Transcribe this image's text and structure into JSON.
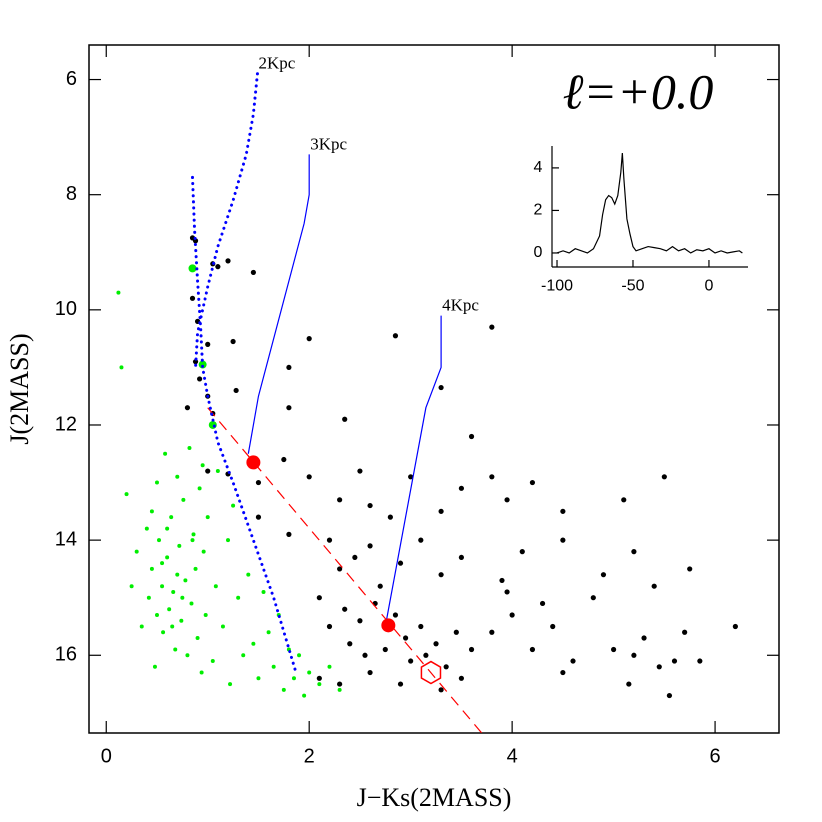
{
  "chart_data": [
    {
      "type": "scatter",
      "title": "ℓ=+0.0",
      "xlabel": "J−Ks(2MASS)",
      "ylabel": "J(2MASS)",
      "xlim": [
        -0.17,
        6.63
      ],
      "ylim": [
        5.4,
        17.35
      ],
      "y_inverted": true,
      "xticks": [
        0,
        2,
        4,
        6
      ],
      "yticks": [
        6,
        8,
        10,
        12,
        14,
        16
      ],
      "series": [
        {
          "mode": "markers",
          "color": "#00ee00",
          "marker_size": 2,
          "x": [
            0.12,
            0.15,
            0.2,
            0.25,
            0.3,
            0.35,
            0.4,
            0.42,
            0.45,
            0.48,
            0.5,
            0.52,
            0.55,
            0.56,
            0.58,
            0.6,
            0.62,
            0.64,
            0.66,
            0.68,
            0.7,
            0.72,
            0.74,
            0.76,
            0.78,
            0.8,
            0.82,
            0.84,
            0.86,
            0.88,
            0.9,
            0.92,
            0.94,
            0.96,
            0.98,
            1.0,
            1.05,
            1.08,
            1.1,
            1.15,
            1.2,
            1.22,
            1.25,
            1.3,
            1.35,
            1.4,
            1.45,
            1.5,
            1.55,
            1.6,
            1.65,
            1.7,
            1.75,
            1.8,
            1.85,
            1.9,
            1.95,
            2.0,
            2.1,
            2.2,
            2.3,
            0.65,
            0.55,
            0.7,
            0.6,
            0.75,
            0.5,
            0.85,
            0.95,
            0.45
          ],
          "values": [
            9.7,
            11.0,
            13.2,
            14.8,
            14.2,
            15.5,
            13.8,
            15.0,
            14.5,
            16.2,
            13.0,
            14.0,
            14.8,
            15.6,
            12.5,
            14.3,
            15.2,
            13.6,
            14.9,
            15.9,
            12.9,
            14.1,
            15.4,
            13.3,
            14.7,
            16.0,
            12.4,
            15.1,
            13.9,
            14.5,
            15.7,
            13.1,
            16.3,
            14.2,
            15.3,
            13.6,
            16.1,
            14.8,
            12.8,
            15.5,
            14.0,
            16.5,
            13.4,
            15.0,
            16.0,
            14.6,
            15.8,
            16.4,
            14.9,
            15.6,
            16.2,
            15.3,
            16.6,
            15.9,
            16.4,
            16.0,
            16.7,
            16.3,
            16.5,
            16.2,
            16.6,
            15.5,
            14.4,
            14.6,
            13.8,
            15.0,
            15.3,
            14.0,
            12.7,
            13.5
          ]
        },
        {
          "mode": "markers",
          "color": "#000000",
          "marker_size": 2.6,
          "x": [
            0.85,
            0.88,
            1.05,
            1.1,
            1.2,
            1.45,
            0.85,
            0.9,
            1.0,
            1.25,
            0.88,
            0.92,
            0.8,
            1.0,
            1.05,
            1.28,
            1.8,
            1.8,
            2.0,
            2.85,
            3.8,
            2.35,
            3.3,
            3.6,
            1.0,
            1.2,
            1.5,
            1.75,
            2.0,
            2.3,
            2.5,
            2.6,
            2.8,
            3.0,
            3.3,
            3.5,
            3.8,
            3.95,
            4.2,
            4.5,
            5.1,
            5.5,
            1.5,
            1.8,
            2.2,
            2.3,
            2.45,
            2.6,
            2.7,
            2.9,
            3.1,
            3.3,
            3.5,
            3.9,
            4.1,
            4.5,
            4.9,
            5.2,
            5.75,
            2.1,
            2.2,
            2.35,
            2.4,
            2.5,
            2.55,
            2.65,
            2.75,
            2.85,
            2.95,
            3.0,
            3.1,
            3.15,
            3.25,
            3.35,
            3.45,
            3.5,
            3.8,
            4.0,
            4.2,
            4.4,
            4.6,
            4.8,
            5.0,
            5.15,
            5.3,
            5.45,
            5.55,
            5.7,
            5.85,
            6.2,
            2.1,
            2.3,
            2.6,
            2.9,
            3.3,
            3.6,
            4.5,
            5.2,
            5.6,
            3.95,
            4.3,
            5.4
          ],
          "values": [
            8.75,
            8.8,
            9.2,
            9.25,
            9.15,
            9.35,
            9.8,
            10.2,
            10.6,
            10.55,
            10.9,
            11.2,
            11.7,
            11.5,
            11.8,
            11.4,
            11.0,
            11.7,
            10.5,
            10.45,
            10.3,
            11.9,
            11.35,
            12.2,
            12.8,
            12.85,
            13.0,
            12.6,
            12.9,
            13.3,
            12.8,
            13.4,
            13.6,
            12.9,
            13.5,
            13.1,
            12.9,
            13.3,
            13.0,
            13.5,
            13.3,
            12.9,
            13.6,
            13.9,
            14.0,
            14.5,
            14.3,
            14.1,
            14.8,
            14.4,
            14.0,
            14.6,
            14.3,
            14.7,
            14.2,
            14.0,
            14.6,
            14.2,
            14.5,
            15.0,
            15.5,
            15.2,
            15.8,
            15.4,
            16.0,
            15.1,
            15.9,
            15.3,
            15.7,
            16.1,
            15.5,
            16.0,
            15.8,
            16.2,
            15.6,
            16.4,
            15.6,
            15.3,
            15.9,
            15.5,
            16.1,
            15.0,
            15.9,
            16.5,
            15.7,
            16.2,
            16.7,
            15.6,
            16.1,
            15.5,
            16.4,
            16.5,
            16.3,
            16.5,
            16.6,
            15.9,
            16.3,
            16.0,
            16.1,
            14.9,
            15.1,
            14.8
          ]
        },
        {
          "mode": "markers",
          "color": "#00ee00",
          "marker_size": 4,
          "x": [
            0.85,
            0.95,
            1.05
          ],
          "values": [
            9.28,
            10.95,
            12.0
          ]
        },
        {
          "mode": "line",
          "style": "dashed",
          "color": "#ff0000",
          "x": [
            1.0,
            3.7
          ],
          "values": [
            11.7,
            17.35
          ]
        },
        {
          "mode": "line",
          "style": "dotted",
          "color": "#0000ff",
          "name": "2Kpc",
          "x": [
            1.49,
            1.45,
            1.38,
            1.25,
            1.1,
            1.0,
            0.9,
            0.88,
            null,
            0.85,
            0.87,
            0.9,
            0.93,
            0.95,
            1.0,
            1.1,
            1.25,
            1.45,
            1.65,
            1.87
          ],
          "values": [
            5.9,
            6.6,
            7.3,
            8.1,
            8.9,
            9.6,
            10.4,
            11.0,
            null,
            7.7,
            8.6,
            9.5,
            10.3,
            11.0,
            11.5,
            12.3,
            13.0,
            14.0,
            15.0,
            16.3
          ]
        },
        {
          "mode": "line",
          "style": "solid",
          "color": "#0000ff",
          "name": "3Kpc",
          "x": [
            2.0,
            2.0,
            1.95,
            1.5,
            1.4
          ],
          "values": [
            7.3,
            8.0,
            8.5,
            11.5,
            12.5
          ]
        },
        {
          "mode": "line",
          "style": "solid",
          "color": "#0000ff",
          "name": "4Kpc",
          "x": [
            3.3,
            3.3,
            3.15,
            2.75
          ],
          "values": [
            10.1,
            11.0,
            11.7,
            15.5
          ]
        },
        {
          "mode": "markers",
          "color": "#ff0000",
          "marker_size": 7,
          "x": [
            1.45,
            2.78
          ],
          "values": [
            12.65,
            15.48
          ]
        },
        {
          "mode": "markers",
          "marker": "hexagon",
          "color": "#ff0000",
          "marker_size": 11,
          "x": [
            3.2
          ],
          "values": [
            16.3
          ]
        }
      ]
    },
    {
      "type": "line",
      "xlim": [
        -103.3,
        25.7
      ],
      "ylim": [
        -0.66,
        5.03
      ],
      "xticks": [
        -100,
        -50,
        0
      ],
      "yticks": [
        0,
        2,
        4
      ],
      "series": [
        {
          "color": "#000000",
          "x": [
            -100,
            -96,
            -92,
            -88,
            -84,
            -80,
            -76,
            -72,
            -70,
            -68,
            -66,
            -64,
            -62,
            -60,
            -58,
            -57,
            -56,
            -54,
            -52,
            -50,
            -48,
            -44,
            -40,
            -36,
            -32,
            -28,
            -24,
            -20,
            -16,
            -12,
            -8,
            -4,
            0,
            4,
            8,
            12,
            16,
            20,
            22
          ],
          "values": [
            0.0,
            0.1,
            0.0,
            0.2,
            0.1,
            0.0,
            0.2,
            0.8,
            1.8,
            2.5,
            2.7,
            2.6,
            2.3,
            2.7,
            3.8,
            4.7,
            3.5,
            1.6,
            0.9,
            0.3,
            0.1,
            0.2,
            0.3,
            0.25,
            0.2,
            0.1,
            0.3,
            0.1,
            0.2,
            0.0,
            0.15,
            0.1,
            0.2,
            0.0,
            0.1,
            0.0,
            0.05,
            0.1,
            0.0
          ]
        }
      ]
    }
  ]
}
